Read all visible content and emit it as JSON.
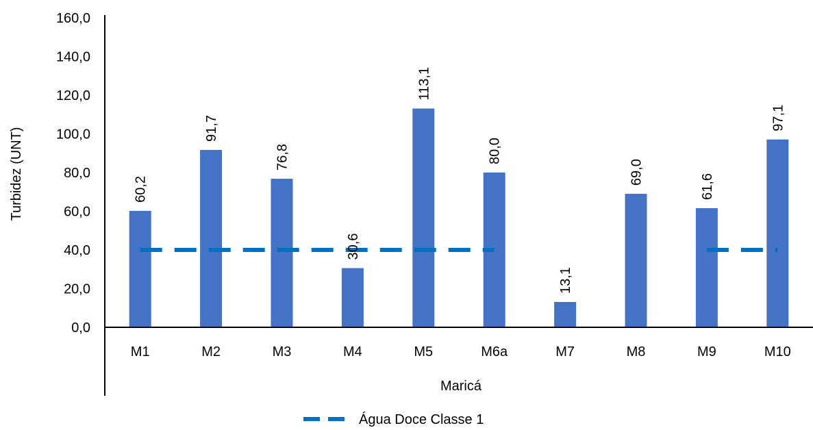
{
  "chart_data": {
    "type": "bar",
    "categories": [
      "M1",
      "M2",
      "M3",
      "M4",
      "M5",
      "M6a",
      "M7",
      "M8",
      "M9",
      "M10"
    ],
    "group_label": "Maricá",
    "series": [
      {
        "values": [
          60.2,
          91.7,
          76.8,
          30.6,
          113.1,
          80.0,
          13.1,
          69.0,
          61.6,
          97.1
        ],
        "value_labels": [
          "60,2",
          "91,7",
          "76,8",
          "30,6",
          "113,1",
          "80,0",
          "13,1",
          "69,0",
          "61,6",
          "97,1"
        ],
        "color": "#4472C4"
      }
    ],
    "reference_line": {
      "name": "Água Doce Classe 1",
      "value": 40.0,
      "color": "#0070C0",
      "style": "dashed",
      "segments": [
        [
          "M1",
          "M6a"
        ],
        [
          "M9",
          "M10"
        ]
      ]
    },
    "ylabel": "Turbidez (UNT)",
    "ylim": [
      0,
      160
    ],
    "yticks": [
      0,
      20,
      40,
      60,
      80,
      100,
      120,
      140,
      160
    ],
    "ytick_labels": [
      "0,0",
      "20,0",
      "40,0",
      "60,0",
      "80,0",
      "100,0",
      "120,0",
      "140,0",
      "160,0"
    ],
    "grid": false,
    "legend_position": "bottom"
  }
}
